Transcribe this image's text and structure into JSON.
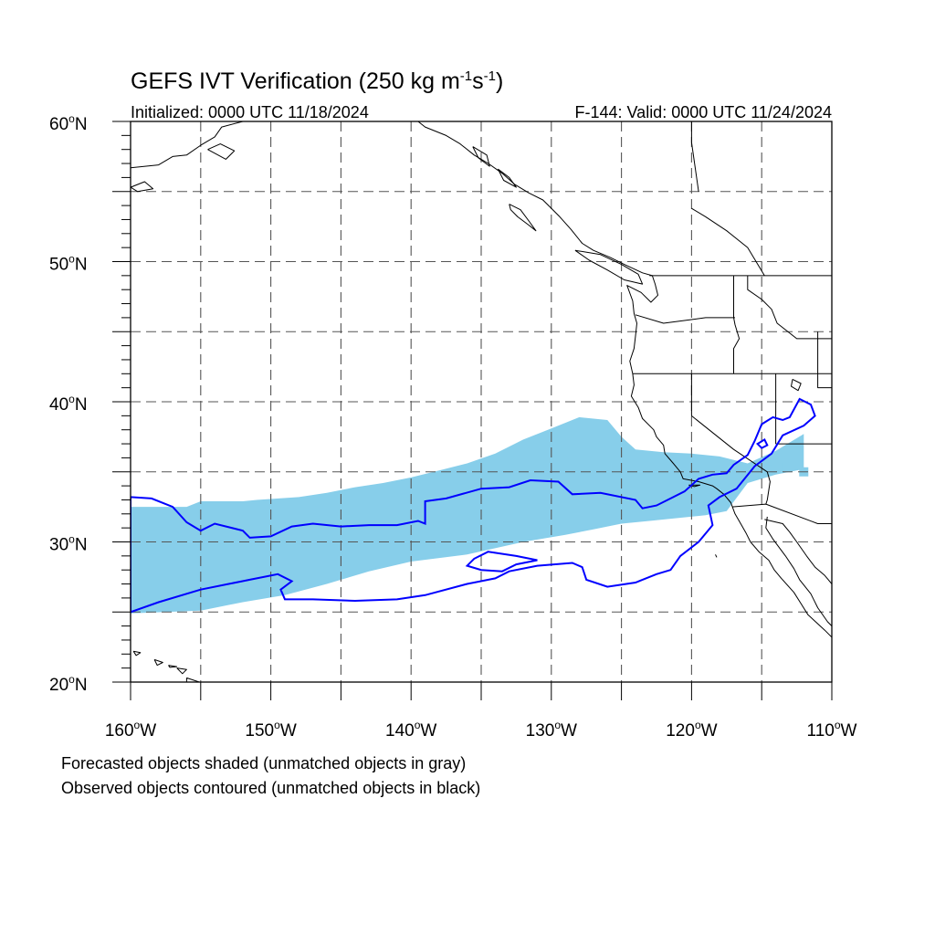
{
  "title_main": "GEFS IVT Verification (250 kg m",
  "title_exp1": "-1",
  "title_mid": "s",
  "title_exp2": "-1",
  "title_close": ")",
  "initialized": "Initialized: 0000 UTC 11/18/2024",
  "valid": "F-144: Valid: 0000 UTC 11/24/2024",
  "lat_labels": [
    {
      "lat": 60,
      "num": "60",
      "deg": "o",
      "hem": "N"
    },
    {
      "lat": 50,
      "num": "50",
      "deg": "o",
      "hem": "N"
    },
    {
      "lat": 40,
      "num": "40",
      "deg": "o",
      "hem": "N"
    },
    {
      "lat": 30,
      "num": "30",
      "deg": "o",
      "hem": "N"
    },
    {
      "lat": 20,
      "num": "20",
      "deg": "o",
      "hem": "N"
    }
  ],
  "lon_labels": [
    {
      "lon": -160,
      "num": "160",
      "deg": "o",
      "hem": "W"
    },
    {
      "lon": -150,
      "num": "150",
      "deg": "o",
      "hem": "W"
    },
    {
      "lon": -140,
      "num": "140",
      "deg": "o",
      "hem": "W"
    },
    {
      "lon": -130,
      "num": "130",
      "deg": "o",
      "hem": "W"
    },
    {
      "lon": -120,
      "num": "120",
      "deg": "o",
      "hem": "W"
    },
    {
      "lon": -110,
      "num": "110",
      "deg": "o",
      "hem": "W"
    }
  ],
  "footnote_1": "Forecasted objects shaded (unmatched objects in gray)",
  "footnote_2": "Observed objects contoured (unmatched objects in black)",
  "map_extent": {
    "lon": [
      -160,
      -110
    ],
    "lat": [
      20,
      60
    ]
  },
  "grid_interval_deg": 5,
  "colors": {
    "forecast_fill": "#87ceea",
    "observed_contour": "#0000ff",
    "coast": "#000000",
    "grid": "#555555"
  },
  "forecast_object": {
    "top_edge": [
      [
        -160,
        32.5
      ],
      [
        -156,
        32.5
      ],
      [
        -155,
        32.9
      ],
      [
        -152,
        32.9
      ],
      [
        -151,
        33.0
      ],
      [
        -148,
        33.2
      ],
      [
        -146,
        33.5
      ],
      [
        -144,
        33.9
      ],
      [
        -142,
        34.2
      ],
      [
        -140,
        34.6
      ],
      [
        -138,
        35.1
      ],
      [
        -136,
        35.6
      ],
      [
        -134,
        36.3
      ],
      [
        -132,
        37.3
      ],
      [
        -130,
        38.1
      ],
      [
        -128,
        38.9
      ],
      [
        -126,
        38.7
      ],
      [
        -125,
        37.5
      ],
      [
        -124,
        36.6
      ],
      [
        -122,
        36.4
      ],
      [
        -120,
        36.3
      ],
      [
        -118,
        36.1
      ],
      [
        -116,
        35.6
      ],
      [
        -114,
        36.5
      ],
      [
        -112,
        37.7
      ]
    ],
    "bottom_edge": [
      [
        -112,
        35.2
      ],
      [
        -114,
        34.8
      ],
      [
        -116,
        34.2
      ],
      [
        -117.5,
        32.2
      ],
      [
        -119,
        31.9
      ],
      [
        -121,
        31.7
      ],
      [
        -123,
        31.5
      ],
      [
        -125,
        31.3
      ],
      [
        -127,
        30.9
      ],
      [
        -129,
        30.5
      ],
      [
        -132,
        30.0
      ],
      [
        -136,
        29.1
      ],
      [
        -140,
        28.6
      ],
      [
        -143,
        27.9
      ],
      [
        -146,
        27.0
      ],
      [
        -149,
        26.2
      ],
      [
        -152,
        25.7
      ],
      [
        -155,
        25.1
      ],
      [
        -160,
        24.9
      ]
    ],
    "extra_pixels": [
      [
        -114.5,
        35.8
      ],
      [
        -113.2,
        35.3
      ],
      [
        -112.0,
        35.0
      ]
    ]
  },
  "observed_objects": [
    {
      "name": "upper",
      "points": [
        [
          -160,
          33.2
        ],
        [
          -158.5,
          33.1
        ],
        [
          -157,
          32.5
        ],
        [
          -156,
          31.4
        ],
        [
          -155,
          30.8
        ],
        [
          -154,
          31.3
        ],
        [
          -152,
          30.8
        ],
        [
          -151.5,
          30.3
        ],
        [
          -150,
          30.4
        ],
        [
          -148.5,
          31.1
        ],
        [
          -147,
          31.3
        ],
        [
          -145,
          31.1
        ],
        [
          -143,
          31.2
        ],
        [
          -141,
          31.2
        ],
        [
          -139.5,
          31.5
        ],
        [
          -139,
          31.3
        ],
        [
          -139,
          32.9
        ],
        [
          -137.5,
          33.1
        ],
        [
          -135,
          33.8
        ],
        [
          -133,
          33.9
        ],
        [
          -131.5,
          34.4
        ],
        [
          -129.5,
          34.3
        ],
        [
          -128.5,
          33.4
        ],
        [
          -126.5,
          33.5
        ],
        [
          -124,
          33.0
        ],
        [
          -123.5,
          32.4
        ],
        [
          -122.5,
          32.6
        ],
        [
          -121.5,
          33.1
        ],
        [
          -120.5,
          33.6
        ],
        [
          -119.5,
          34.5
        ],
        [
          -118.5,
          34.8
        ],
        [
          -117.5,
          34.9
        ],
        [
          -117,
          35.5
        ],
        [
          -116,
          36.2
        ],
        [
          -115.5,
          37.2
        ],
        [
          -115,
          38.4
        ],
        [
          -114.2,
          38.9
        ],
        [
          -113.5,
          38.7
        ],
        [
          -113,
          38.9
        ],
        [
          -112.3,
          40.2
        ],
        [
          -111.5,
          39.8
        ],
        [
          -111.2,
          39.0
        ],
        [
          -112,
          38.3
        ],
        [
          -113.5,
          37.6
        ],
        [
          -114.3,
          36.3
        ],
        [
          -115.5,
          35.4
        ],
        [
          -116.8,
          33.8
        ],
        [
          -118,
          33.2
        ],
        [
          -118.8,
          32.6
        ],
        [
          -118.5,
          31.2
        ],
        [
          -119.5,
          30.0
        ],
        [
          -120.8,
          29.0
        ],
        [
          -121.5,
          28.0
        ],
        [
          -122.5,
          27.7
        ],
        [
          -124,
          27.1
        ],
        [
          -126,
          26.8
        ],
        [
          -127.5,
          27.3
        ],
        [
          -127.8,
          28.2
        ],
        [
          -128.5,
          28.5
        ],
        [
          -131,
          28.3
        ],
        [
          -133,
          27.9
        ],
        [
          -134,
          27.4
        ],
        [
          -136,
          27.0
        ],
        [
          -139,
          26.2
        ],
        [
          -141,
          25.9
        ],
        [
          -144,
          25.8
        ],
        [
          -147,
          25.9
        ],
        [
          -149,
          25.9
        ],
        [
          -149.3,
          26.6
        ],
        [
          -148.5,
          27.2
        ],
        [
          -149.5,
          27.7
        ],
        [
          -151.5,
          27.3
        ],
        [
          -153,
          27.0
        ],
        [
          -155,
          26.6
        ],
        [
          -158,
          25.7
        ],
        [
          -160,
          25.0
        ]
      ]
    },
    {
      "name": "small-east",
      "points": [
        [
          -115.3,
          37.0
        ],
        [
          -114.8,
          37.3
        ],
        [
          -114.6,
          36.9
        ],
        [
          -115.0,
          36.7
        ]
      ]
    },
    {
      "name": "island",
      "points": [
        [
          -134.5,
          29.3
        ],
        [
          -132.5,
          29.0
        ],
        [
          -131,
          28.7
        ],
        [
          -132.5,
          28.4
        ],
        [
          -133.5,
          27.9
        ],
        [
          -135,
          28.0
        ],
        [
          -136,
          28.3
        ],
        [
          -135.5,
          28.8
        ]
      ]
    }
  ]
}
